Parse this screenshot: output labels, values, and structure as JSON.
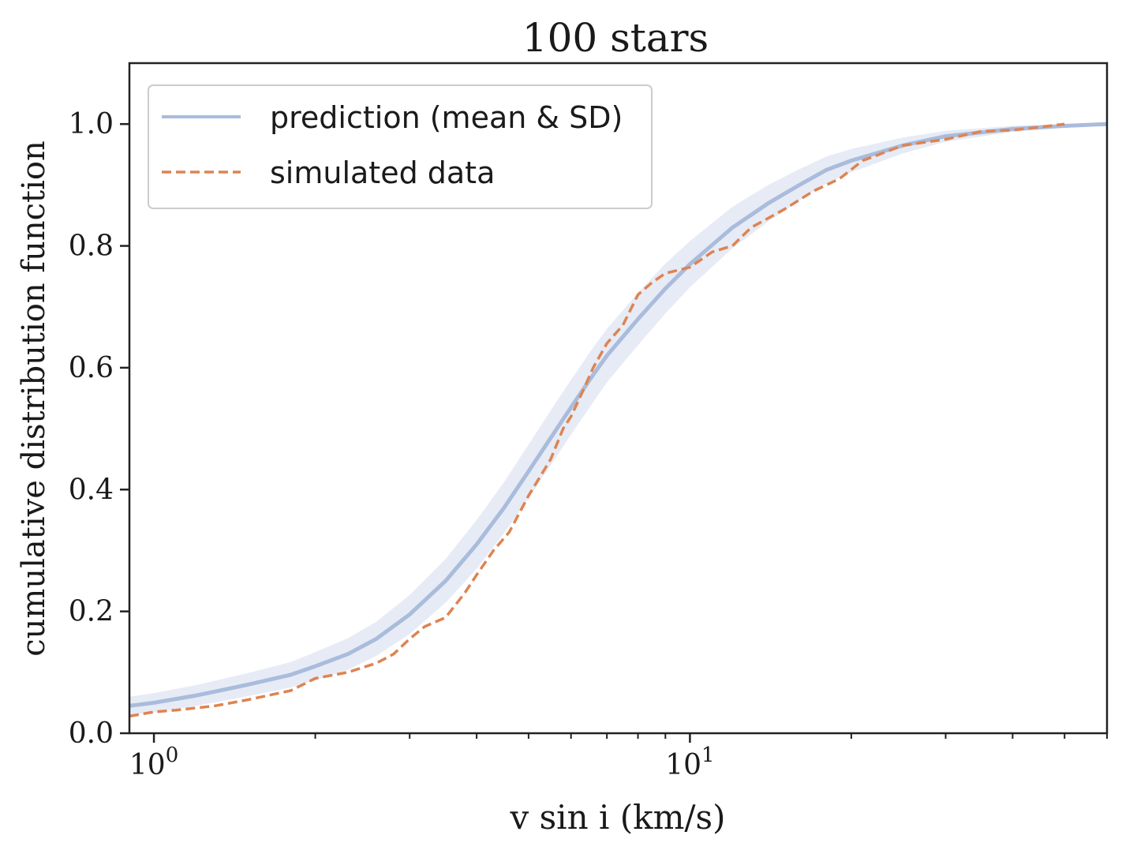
{
  "chart_data": {
    "type": "line",
    "title": "100 stars",
    "xlabel": "v sin i (km/s)",
    "ylabel": "cumulative distribution function",
    "x_scale": "log",
    "xlim": [
      0.9,
      60
    ],
    "ylim": [
      0,
      1.1
    ],
    "x_ticks": [
      {
        "value": 1,
        "base": "10",
        "exp": "0"
      },
      {
        "value": 10,
        "base": "10",
        "exp": "1"
      }
    ],
    "y_ticks": [
      "0.0",
      "0.2",
      "0.4",
      "0.6",
      "0.8",
      "1.0"
    ],
    "legend_position": "top-left",
    "grid": false,
    "series": [
      {
        "name": "prediction (mean & SD)",
        "style": "solid",
        "color": "#a9bcdc",
        "band_color": "#e7ebf5",
        "x": [
          0.9,
          1.0,
          1.2,
          1.5,
          1.8,
          2.0,
          2.3,
          2.6,
          3.0,
          3.5,
          4.0,
          4.5,
          5.0,
          5.5,
          6.0,
          6.5,
          7.0,
          8.0,
          9.0,
          10.0,
          12.0,
          14.0,
          16.0,
          18.0,
          20.0,
          25.0,
          30.0,
          40.0,
          50.0,
          60.0
        ],
        "values": [
          0.045,
          0.05,
          0.062,
          0.08,
          0.096,
          0.11,
          0.13,
          0.155,
          0.195,
          0.25,
          0.31,
          0.37,
          0.43,
          0.485,
          0.535,
          0.58,
          0.62,
          0.68,
          0.73,
          0.77,
          0.83,
          0.87,
          0.9,
          0.925,
          0.94,
          0.965,
          0.98,
          0.992,
          0.997,
          1.0
        ],
        "sd": [
          0.015,
          0.016,
          0.017,
          0.019,
          0.021,
          0.023,
          0.026,
          0.028,
          0.032,
          0.036,
          0.04,
          0.042,
          0.044,
          0.045,
          0.045,
          0.045,
          0.044,
          0.043,
          0.041,
          0.038,
          0.034,
          0.03,
          0.026,
          0.022,
          0.019,
          0.013,
          0.009,
          0.005,
          0.003,
          0.001
        ]
      },
      {
        "name": "simulated data",
        "style": "dashed",
        "color": "#dd8452",
        "x": [
          0.9,
          1.0,
          1.1,
          1.3,
          1.5,
          1.8,
          2.0,
          2.3,
          2.6,
          2.8,
          3.0,
          3.2,
          3.5,
          3.8,
          4.0,
          4.3,
          4.6,
          5.0,
          5.5,
          5.8,
          6.0,
          6.3,
          6.6,
          7.0,
          7.5,
          8.0,
          8.5,
          9.0,
          10.0,
          11.0,
          12.0,
          13.0,
          15.0,
          17.0,
          19.0,
          21.0,
          25.0,
          30.0,
          35.0,
          40.0,
          45.0,
          50.0
        ],
        "values": [
          0.028,
          0.035,
          0.038,
          0.045,
          0.055,
          0.07,
          0.09,
          0.1,
          0.115,
          0.13,
          0.155,
          0.175,
          0.19,
          0.23,
          0.26,
          0.3,
          0.33,
          0.39,
          0.45,
          0.5,
          0.52,
          0.56,
          0.6,
          0.64,
          0.67,
          0.72,
          0.74,
          0.755,
          0.765,
          0.79,
          0.8,
          0.83,
          0.86,
          0.89,
          0.91,
          0.94,
          0.965,
          0.975,
          0.988,
          0.99,
          0.995,
          1.0
        ]
      }
    ]
  }
}
